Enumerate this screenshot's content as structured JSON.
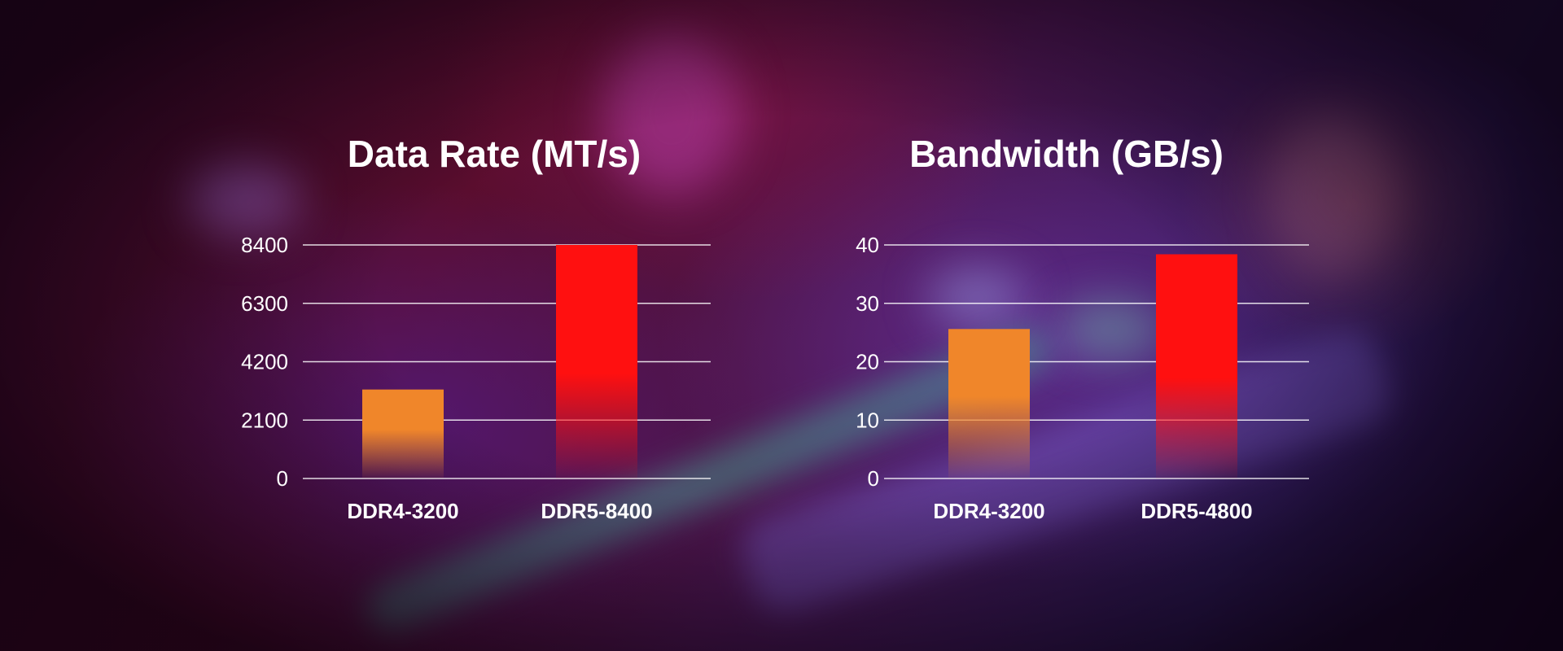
{
  "colors": {
    "ddr4": "#f0862a",
    "ddr5": "#ff1010",
    "text": "#ffffff"
  },
  "chart_data": [
    {
      "type": "bar",
      "title": "Data Rate (MT/s)",
      "categories": [
        "DDR4-3200",
        "DDR5-8400"
      ],
      "values": [
        3200,
        8400
      ],
      "ylim": [
        0,
        8400
      ],
      "yticks": [
        "0",
        "2100",
        "4200",
        "6300",
        "8400"
      ],
      "grid": true
    },
    {
      "type": "bar",
      "title": "Bandwidth (GB/s)",
      "categories": [
        "DDR4-3200",
        "DDR5-4800"
      ],
      "values": [
        25.6,
        38.4
      ],
      "ylim": [
        0,
        40
      ],
      "yticks": [
        "0",
        "10",
        "20",
        "30",
        "40"
      ],
      "grid": true
    }
  ]
}
